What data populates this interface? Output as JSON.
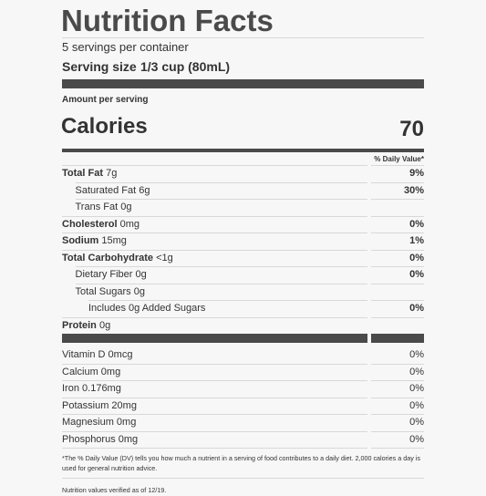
{
  "title": "Nutrition Facts",
  "servings": "5 servings per container",
  "serving_size": {
    "label": "Serving size",
    "value": "1/3 cup (80mL)"
  },
  "amount_per_serving": "Amount per serving",
  "calories": {
    "label": "Calories",
    "value": "70"
  },
  "daily_value_header": "% Daily Value*",
  "nutrients": [
    {
      "name": "Total Fat",
      "amount": "7g",
      "dv": "9%",
      "sub": [
        {
          "name": "Saturated Fat",
          "amount": "6g",
          "dv": "30%"
        },
        {
          "name": "Trans Fat",
          "amount": "0g"
        }
      ]
    },
    {
      "name": "Cholesterol",
      "amount": "0mg",
      "dv": "0%"
    },
    {
      "name": "Sodium",
      "amount": "15mg",
      "dv": "1%"
    },
    {
      "name": "Total Carbohydrate",
      "amount": "<1g",
      "dv": "0%",
      "sub": [
        {
          "name": "Dietary Fiber",
          "amount": "0g",
          "dv": "0%"
        },
        {
          "name": "Total Sugars",
          "amount": "0g",
          "sub": [
            {
              "name": "Includes 0g Added Sugars",
              "dv": "0%"
            }
          ]
        }
      ]
    },
    {
      "name": "Protein",
      "amount": "0g"
    }
  ],
  "vitamins": [
    {
      "name": "Vitamin D",
      "amount": "0mcg",
      "dv": "0%"
    },
    {
      "name": "Calcium",
      "amount": "0mg",
      "dv": "0%"
    },
    {
      "name": "Iron",
      "amount": "0.176mg",
      "dv": "0%"
    },
    {
      "name": "Potassium",
      "amount": "20mg",
      "dv": "0%"
    },
    {
      "name": "Magnesium",
      "amount": "0mg",
      "dv": "0%"
    },
    {
      "name": "Phosphorus",
      "amount": "0mg",
      "dv": "0%"
    }
  ],
  "footnote": "*The % Daily Value (DV) tells you how much a nutrient in a serving of food contributes to a daily diet. 2,000 calories a day is used for general nutrition advice.",
  "verified": "Nutrition values verified as of 12/19."
}
